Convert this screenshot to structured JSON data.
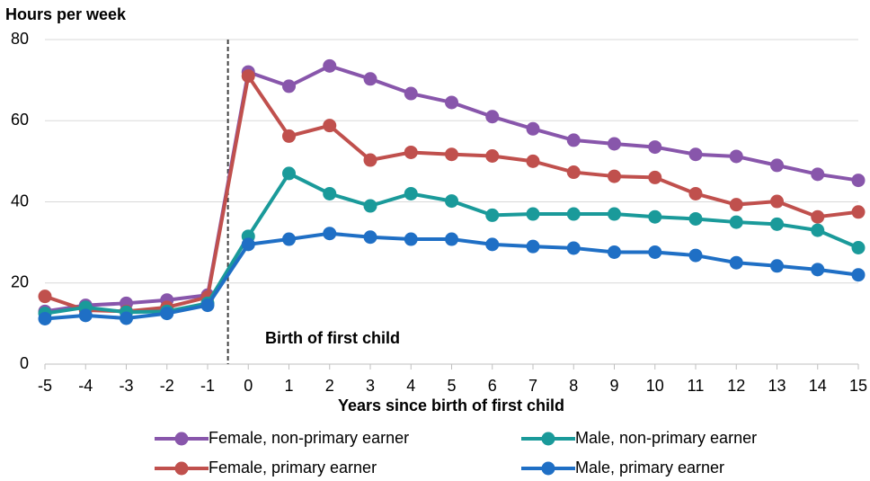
{
  "chart_data": {
    "type": "line",
    "y_label": "Hours per week",
    "x_label": "Years since birth of first child",
    "annotation": "Birth of first child",
    "vline_x": -0.5,
    "x": [
      -5,
      -4,
      -3,
      -2,
      -1,
      0,
      1,
      2,
      3,
      4,
      5,
      6,
      7,
      8,
      9,
      10,
      11,
      12,
      13,
      14,
      15
    ],
    "xlim": [
      -5,
      15
    ],
    "xticks": [
      -5,
      -4,
      -3,
      -2,
      -1,
      0,
      1,
      2,
      3,
      4,
      5,
      6,
      7,
      8,
      9,
      10,
      11,
      12,
      13,
      14,
      15
    ],
    "ylim": [
      0,
      80
    ],
    "yticks": [
      0,
      20,
      40,
      60,
      80
    ],
    "grid": true,
    "series": [
      {
        "name": "Female, non-primary earner",
        "color": "#8856ab",
        "values": [
          13,
          14.5,
          15,
          15.8,
          17,
          72,
          68.5,
          73.5,
          70.3,
          66.7,
          64.5,
          61,
          58,
          55.2,
          54.3,
          53.5,
          51.7,
          51.2,
          49,
          46.8,
          45.3
        ]
      },
      {
        "name": "Female, primary earner",
        "color": "#c0504d",
        "values": [
          16.7,
          13.3,
          13,
          14,
          16.5,
          71,
          56.2,
          58.8,
          50.3,
          52.2,
          51.7,
          51.3,
          50,
          47.3,
          46.3,
          46,
          42,
          39.3,
          40.1,
          36.3,
          37.5
        ]
      },
      {
        "name": "Male, non-primary earner",
        "color": "#1a9a9a",
        "values": [
          12.5,
          14,
          12.8,
          13,
          15,
          31.5,
          47,
          42,
          39,
          42,
          40.2,
          36.7,
          37,
          37,
          37,
          36.3,
          35.8,
          35,
          34.5,
          33,
          28.7
        ]
      },
      {
        "name": "Male, primary earner",
        "color": "#1f6fc5",
        "values": [
          11.2,
          12,
          11.3,
          12.5,
          14.5,
          29.5,
          30.8,
          32.2,
          31.3,
          30.8,
          30.8,
          29.5,
          29,
          28.6,
          27.6,
          27.6,
          26.8,
          25,
          24.2,
          23.3,
          22
        ]
      }
    ]
  }
}
